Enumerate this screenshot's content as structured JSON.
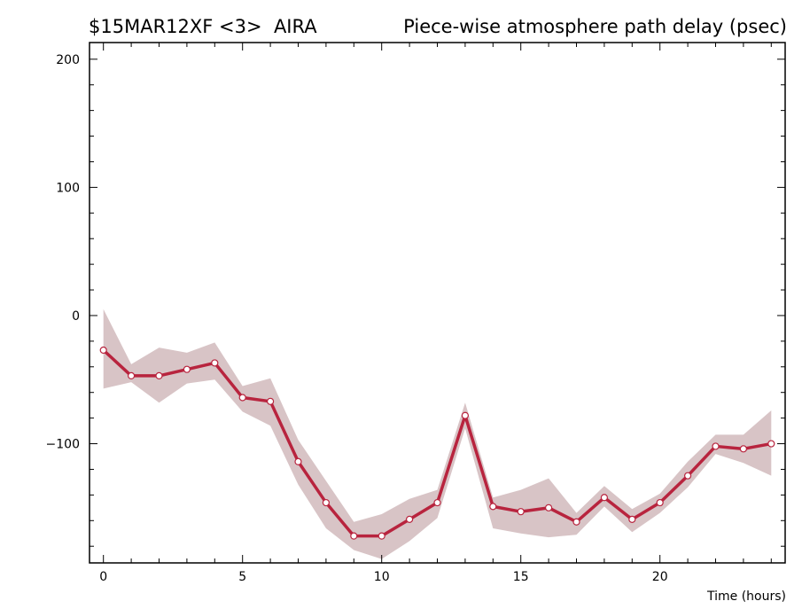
{
  "header": {
    "experiment": "$15MAR12XF <3>",
    "antenna": "AIRA",
    "title": "Piece-wise atmosphere path delay (psec)"
  },
  "chart_data": {
    "type": "line",
    "xlabel": "Time (hours)",
    "ylabel": "",
    "xlim": [
      -0.5,
      24.5
    ],
    "ylim": [
      -193,
      213
    ],
    "x_ticks": [
      0,
      5,
      10,
      15,
      20
    ],
    "y_ticks": [
      200,
      100,
      0,
      -100
    ],
    "grid": false,
    "colors": {
      "line": "#b8243e",
      "band": "#d8c4c6",
      "marker_fill": "#ffffff"
    },
    "series": [
      {
        "x": [
          0,
          1,
          2,
          3,
          4,
          5,
          6,
          7,
          8,
          9,
          10,
          11,
          12,
          13,
          14,
          15,
          16,
          17,
          18,
          19,
          20,
          21,
          22,
          23,
          24
        ],
        "values": [
          -27,
          -47,
          -47,
          -42,
          -37,
          -64,
          -67,
          -114,
          -146,
          -172,
          -172,
          -159,
          -146,
          -78,
          -149,
          -153,
          -150,
          -161,
          -142,
          -159,
          -146,
          -125,
          -102,
          -104,
          -100
        ],
        "band_upper": [
          5,
          -38,
          -25,
          -29,
          -21,
          -55,
          -49,
          -97,
          -129,
          -161,
          -155,
          -143,
          -136,
          -68,
          -142,
          -136,
          -127,
          -154,
          -133,
          -151,
          -139,
          -114,
          -93,
          -93,
          -74
        ],
        "band_lower": [
          -57,
          -52,
          -68,
          -53,
          -50,
          -75,
          -86,
          -132,
          -166,
          -183,
          -190,
          -176,
          -158,
          -88,
          -166,
          -170,
          -173,
          -171,
          -149,
          -169,
          -154,
          -134,
          -108,
          -115,
          -125
        ]
      }
    ]
  }
}
